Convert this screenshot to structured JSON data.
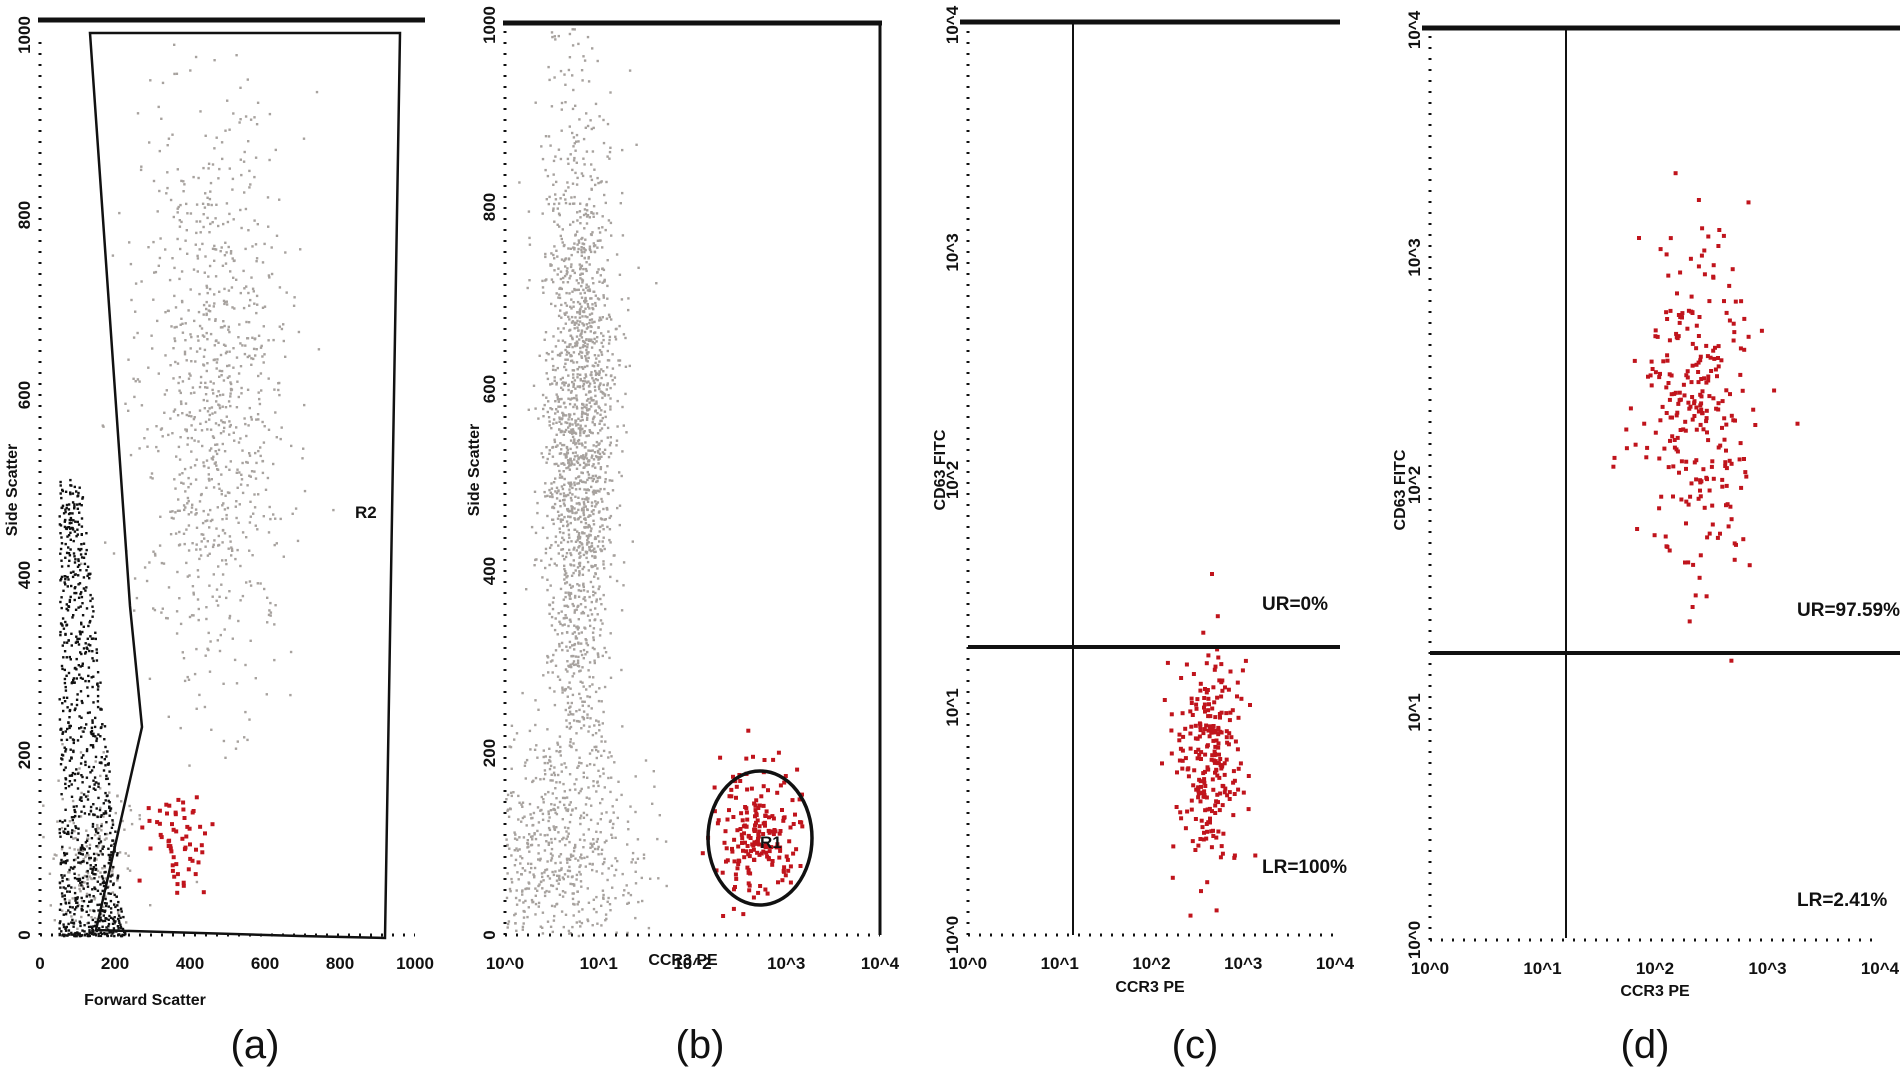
{
  "colors": {
    "gated": "#c0141c",
    "main_population": "#a7a29e",
    "debris": "#111111"
  },
  "chart_data": [
    {
      "panel": "(a)",
      "type": "scatter",
      "xlabel": "Forward Scatter",
      "ylabel": "Side Scatter",
      "xlim": [
        0,
        1023
      ],
      "ylim": [
        0,
        1023
      ],
      "xticks": [
        "0",
        "200",
        "400",
        "600",
        "800",
        "1000"
      ],
      "yticks": [
        "0",
        "200",
        "400",
        "600",
        "800",
        "1000"
      ],
      "gate_label": "R2",
      "populations": [
        {
          "name": "",
          "color": "gray",
          "center": [
            470,
            620
          ],
          "count": 900
        },
        {
          "name": "",
          "color": "gray",
          "center": [
            140,
            90
          ],
          "count": 180
        },
        {
          "name": "",
          "color": "black",
          "x_range": [
            50,
            230
          ],
          "y_range": [
            0,
            520
          ],
          "count": 900
        },
        {
          "name": "",
          "color": "red",
          "center": [
            365,
            115
          ],
          "count": 60
        }
      ]
    },
    {
      "panel": "(b)",
      "type": "scatter",
      "log_x": true,
      "xlabel": "CCR3 PE",
      "ylabel": "Side Scatter",
      "xlim": [
        1,
        10000
      ],
      "ylim": [
        0,
        1023
      ],
      "xticks": [
        "10^0",
        "10^1",
        "10^2",
        "10^3",
        "10^4"
      ],
      "yticks": [
        "0",
        "200",
        "400",
        "600",
        "800",
        "1000"
      ],
      "gate_label": "R1",
      "populations": [
        {
          "name": "",
          "color": "gray",
          "center": [
            6,
            560
          ],
          "count": 1800
        },
        {
          "name": "",
          "color": "gray",
          "center": [
            3,
            90
          ],
          "count": 700
        },
        {
          "name": "",
          "color": "red",
          "center": [
            450,
            120
          ],
          "count": 200
        }
      ]
    },
    {
      "panel": "(c)",
      "type": "scatter",
      "log_x": true,
      "log_y": true,
      "xlabel": "CCR3 PE",
      "ylabel": "CD63 FITC",
      "xlim": [
        1,
        10000
      ],
      "ylim": [
        1,
        10000
      ],
      "xticks": [
        "10^0",
        "10^1",
        "10^2",
        "10^3",
        "10^4"
      ],
      "yticks": [
        "10^0",
        "10^1",
        "10^2",
        "10^3",
        "10^4"
      ],
      "quadrants": {
        "UR": "UR=0%",
        "LR": "LR=100%"
      },
      "populations": [
        {
          "name": "",
          "color": "red",
          "center": [
            420,
            6
          ],
          "count": 260
        }
      ]
    },
    {
      "panel": "(d)",
      "type": "scatter",
      "log_x": true,
      "log_y": true,
      "xlabel": "CCR3 PE",
      "ylabel": "CD63 FITC",
      "xlim": [
        1,
        10000
      ],
      "ylim": [
        1,
        10000
      ],
      "xticks": [
        "10^0",
        "10^1",
        "10^2",
        "10^3",
        "10^4"
      ],
      "yticks": [
        "10^0",
        "10^1",
        "10^2",
        "10^3",
        "10^4"
      ],
      "quadrants": {
        "UR": "UR=97.59%",
        "LR": "LR=2.41%"
      },
      "populations": [
        {
          "name": "",
          "color": "red",
          "center": [
            230,
            250
          ],
          "count": 280
        }
      ]
    }
  ]
}
